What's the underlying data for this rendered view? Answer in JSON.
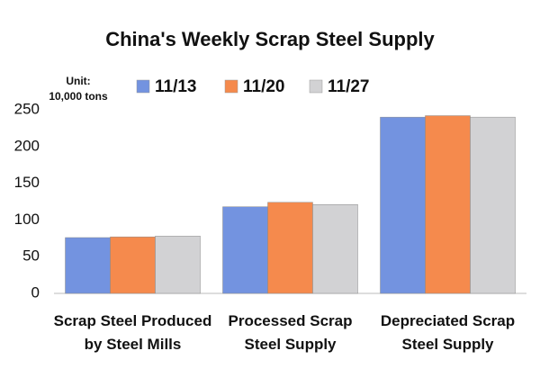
{
  "chart_data": {
    "type": "bar",
    "title": "China's Weekly Scrap Steel Supply",
    "unit": "Unit:\n10,000 tons",
    "categories": [
      "Scrap Steel Produced\nby Steel Mills",
      "Processed Scrap\nSteel Supply",
      "Depreciated Scrap\nSteel Supply"
    ],
    "series": [
      {
        "name": "11/13",
        "color": "#7393e0",
        "values": [
          76,
          118,
          240
        ]
      },
      {
        "name": "11/20",
        "color": "#f58a4d",
        "values": [
          77,
          124,
          242
        ]
      },
      {
        "name": "11/27",
        "color": "#d2d2d4",
        "values": [
          78,
          121,
          240
        ]
      }
    ],
    "ylim": [
      0,
      250
    ],
    "yticks": [
      0,
      50,
      100,
      150,
      200,
      250
    ],
    "grid": false
  }
}
